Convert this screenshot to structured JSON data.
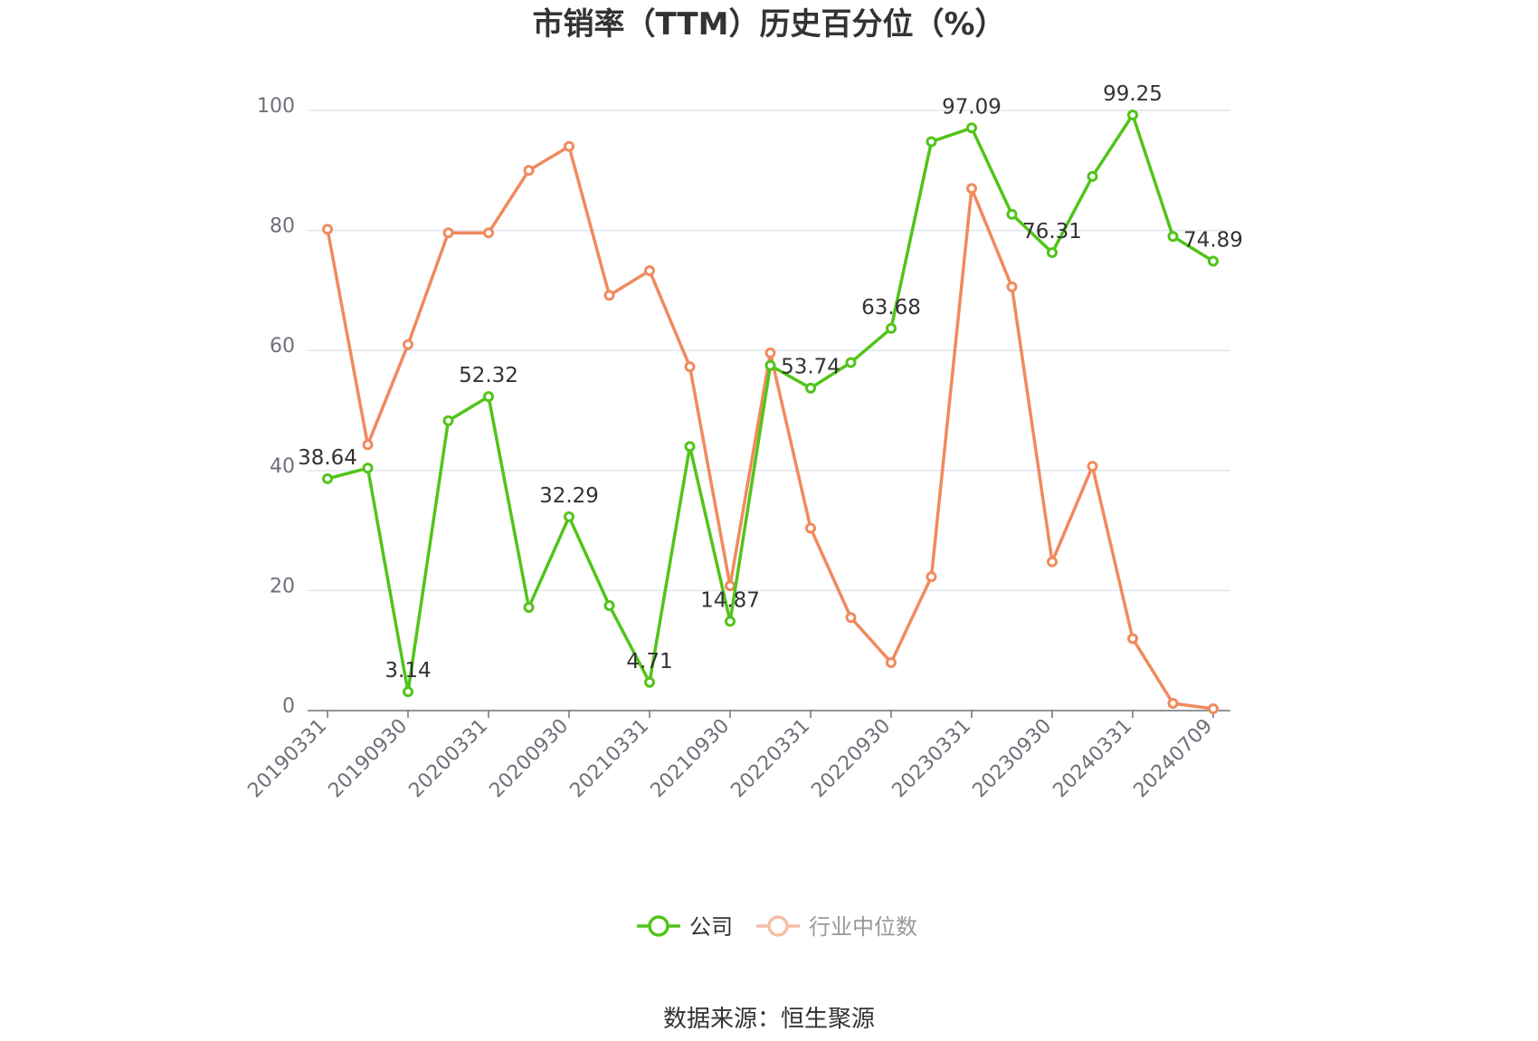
{
  "chart_data": {
    "type": "line",
    "title": "市销率（TTM）历史百分位（%）",
    "ylim": [
      0,
      100
    ],
    "yticks": [
      0,
      20,
      40,
      60,
      80,
      100
    ],
    "grid": true,
    "legend_position": "bottom",
    "x": [
      "20190331",
      "20190630",
      "20190930",
      "20191231",
      "20200331",
      "20200630",
      "20200930",
      "20201231",
      "20210331",
      "20210630",
      "20210930",
      "20211231",
      "20220331",
      "20220630",
      "20220930",
      "20221231",
      "20230331",
      "20230630",
      "20230930",
      "20231231",
      "20240331",
      "20240630",
      "20240709"
    ],
    "xtick_labels": [
      "20190331",
      "20190930",
      "20200331",
      "20200930",
      "20210331",
      "20210930",
      "20220331",
      "20220930",
      "20230331",
      "20230930",
      "20240331",
      "20240709"
    ],
    "series": [
      {
        "name": "公司",
        "color": "#52c41a",
        "values": [
          38.64,
          40.4,
          3.14,
          48.3,
          52.32,
          17.2,
          32.29,
          17.5,
          4.71,
          44.0,
          14.87,
          57.5,
          53.74,
          58.0,
          63.68,
          94.8,
          97.09,
          82.7,
          76.31,
          89.0,
          99.25,
          79.0,
          74.89
        ]
      },
      {
        "name": "行业中位数",
        "color": "#f08a5d",
        "values": [
          80.2,
          44.3,
          61.0,
          79.6,
          79.6,
          90.0,
          94.0,
          69.2,
          73.3,
          57.3,
          20.8,
          59.6,
          30.4,
          15.5,
          8.0,
          22.3,
          87.0,
          70.6,
          24.8,
          40.7,
          12.0,
          1.2,
          0.3
        ]
      }
    ],
    "data_labels": [
      {
        "series": 0,
        "index": 0,
        "text": "38.64"
      },
      {
        "series": 0,
        "index": 2,
        "text": "3.14"
      },
      {
        "series": 0,
        "index": 4,
        "text": "52.32"
      },
      {
        "series": 0,
        "index": 6,
        "text": "32.29"
      },
      {
        "series": 0,
        "index": 8,
        "text": "4.71"
      },
      {
        "series": 0,
        "index": 10,
        "text": "14.87"
      },
      {
        "series": 0,
        "index": 12,
        "text": "53.74"
      },
      {
        "series": 0,
        "index": 14,
        "text": "63.68"
      },
      {
        "series": 0,
        "index": 16,
        "text": "97.09"
      },
      {
        "series": 0,
        "index": 18,
        "text": "76.31"
      },
      {
        "series": 0,
        "index": 20,
        "text": "99.25"
      },
      {
        "series": 0,
        "index": 22,
        "text": "74.89"
      }
    ]
  },
  "source": "数据来源：恒生聚源"
}
